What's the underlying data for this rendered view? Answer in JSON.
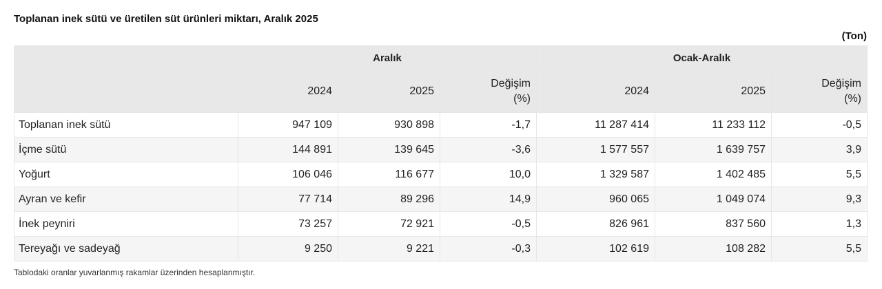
{
  "title": "Toplanan inek sütü ve üretilen süt ürünleri miktarı, Aralık 2025",
  "unit": "(Ton)",
  "table": {
    "groups": [
      "Aralık",
      "Ocak-Aralık"
    ],
    "columns": [
      "2024",
      "2025",
      "Değişim (%)",
      "2024",
      "2025",
      "Değişim (%)"
    ],
    "rows": [
      {
        "label": "Toplanan inek sütü",
        "values": [
          "947 109",
          "930 898",
          "-1,7",
          "11 287 414",
          "11 233 112",
          "-0,5"
        ]
      },
      {
        "label": "İçme sütü",
        "values": [
          "144 891",
          "139 645",
          "-3,6",
          "1 577 557",
          "1 639 757",
          "3,9"
        ]
      },
      {
        "label": "Yoğurt",
        "values": [
          "106 046",
          "116 677",
          "10,0",
          "1 329 587",
          "1 402 485",
          "5,5"
        ]
      },
      {
        "label": "Ayran ve kefir",
        "values": [
          "77 714",
          "89 296",
          "14,9",
          "960 065",
          "1 049 074",
          "9,3"
        ]
      },
      {
        "label": "İnek peyniri",
        "values": [
          "73 257",
          "72 921",
          "-0,5",
          "826 961",
          "837 560",
          "1,3"
        ]
      },
      {
        "label": "Tereyağı ve sadeyağ",
        "values": [
          "9 250",
          "9 221",
          "-0,3",
          "102 619",
          "108 282",
          "5,5"
        ]
      }
    ]
  },
  "footnote": "Tablodaki oranlar yuvarlanmış rakamlar üzerinden hesaplanmıştır."
}
